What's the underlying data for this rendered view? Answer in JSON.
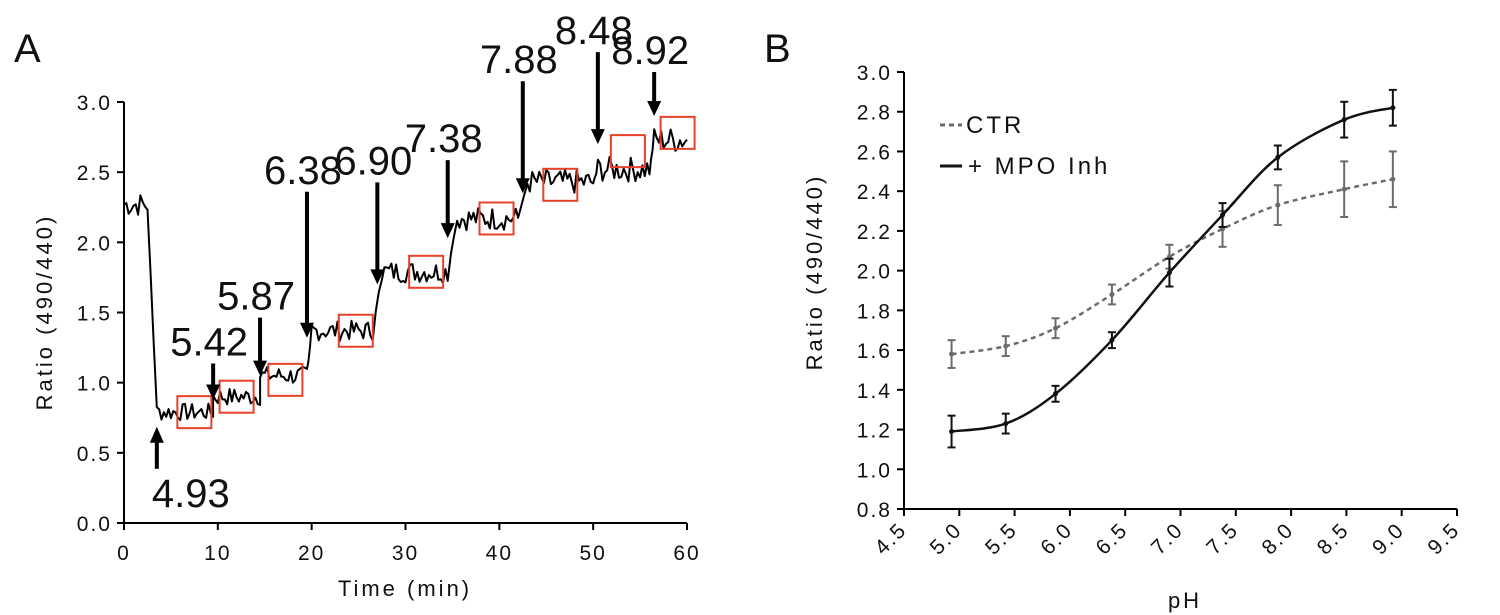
{
  "chart_data": [
    {
      "panel": "A",
      "type": "line",
      "xlabel": "Time (min)",
      "ylabel": "Ratio (490/440)",
      "xlim": [
        0,
        60
      ],
      "ylim": [
        0,
        3.0
      ],
      "xticks": [
        "0",
        "10",
        "20",
        "30",
        "40",
        "50",
        "60"
      ],
      "yticks": [
        "0.0",
        "0.5",
        "1.0",
        "1.5",
        "2.0",
        "2.5",
        "3.0"
      ],
      "grid": false,
      "line_color": "#000000",
      "box_color": "#e8412a",
      "plateaus": [
        {
          "t_start": 0,
          "t_end": 2.5,
          "level": 2.27
        },
        {
          "t_start": 3.5,
          "t_end": 9.5,
          "level": 0.79
        },
        {
          "t_start": 9.5,
          "t_end": 14.5,
          "level": 0.9
        },
        {
          "t_start": 14.5,
          "t_end": 19.5,
          "level": 1.05
        },
        {
          "t_start": 20,
          "t_end": 26.5,
          "level": 1.37
        },
        {
          "t_start": 27.5,
          "t_end": 34.5,
          "level": 1.79
        },
        {
          "t_start": 35.5,
          "t_end": 42,
          "level": 2.17
        },
        {
          "t_start": 43,
          "t_end": 50,
          "level": 2.43
        },
        {
          "t_start": 50.5,
          "t_end": 56,
          "level": 2.52
        },
        {
          "t_start": 56.5,
          "t_end": 60,
          "level": 2.73
        }
      ],
      "boxes": [
        {
          "t": 7.5,
          "level": 0.79
        },
        {
          "t": 12.0,
          "level": 0.9
        },
        {
          "t": 17.2,
          "level": 1.02
        },
        {
          "t": 24.7,
          "level": 1.37
        },
        {
          "t": 32.2,
          "level": 1.79
        },
        {
          "t": 39.7,
          "level": 2.17
        },
        {
          "t": 46.5,
          "level": 2.41
        },
        {
          "t": 53.7,
          "level": 2.65
        },
        {
          "t": 59.0,
          "level": 2.78
        }
      ],
      "annotations": [
        {
          "text": "4.93",
          "t": 3.5,
          "level": 0.6,
          "direction": "up"
        },
        {
          "text": "5.42",
          "t": 9.5,
          "level": 0.88,
          "direction": "down"
        },
        {
          "text": "5.87",
          "t": 14.5,
          "level": 1.05,
          "direction": "down"
        },
        {
          "text": "6.38",
          "t": 19.5,
          "level": 1.32,
          "direction": "down"
        },
        {
          "text": "6.90",
          "t": 27.0,
          "level": 1.7,
          "direction": "down"
        },
        {
          "text": "7.38",
          "t": 34.5,
          "level": 2.03,
          "direction": "down"
        },
        {
          "text": "7.88",
          "t": 42.5,
          "level": 2.35,
          "direction": "down"
        },
        {
          "text": "8.48",
          "t": 50.5,
          "level": 2.7,
          "direction": "down"
        },
        {
          "text": "8.92",
          "t": 56.5,
          "level": 2.9,
          "direction": "down"
        }
      ]
    },
    {
      "panel": "B",
      "type": "line",
      "xlabel": "pH",
      "ylabel": "Ratio (490/440)",
      "xlim": [
        4.5,
        9.5
      ],
      "ylim": [
        0.8,
        3.0
      ],
      "xticks": [
        "4.5",
        "5.0",
        "5.5",
        "6.0",
        "6.5",
        "7.0",
        "7.5",
        "8.0",
        "8.5",
        "9.0",
        "9.5"
      ],
      "yticks": [
        "0.8",
        "1.0",
        "1.2",
        "1.4",
        "1.6",
        "1.8",
        "2.0",
        "2.2",
        "2.4",
        "2.6",
        "2.8",
        "3.0"
      ],
      "grid": false,
      "legend_position": "top-left",
      "series": [
        {
          "name": "CTR",
          "color": "#6b6b6b",
          "dash": "dashed",
          "x": [
            4.93,
            5.42,
            5.87,
            6.38,
            6.9,
            7.38,
            7.88,
            8.48,
            8.92
          ],
          "y": [
            1.58,
            1.62,
            1.71,
            1.88,
            2.07,
            2.21,
            2.33,
            2.41,
            2.46
          ],
          "err": [
            0.07,
            0.05,
            0.05,
            0.05,
            0.06,
            0.09,
            0.1,
            0.14,
            0.14
          ]
        },
        {
          "name": "+ MPO Inh",
          "color": "#111111",
          "dash": "solid",
          "x": [
            4.93,
            5.42,
            5.87,
            6.38,
            6.9,
            7.38,
            7.88,
            8.48,
            8.92
          ],
          "y": [
            1.19,
            1.23,
            1.38,
            1.65,
            1.99,
            2.28,
            2.57,
            2.76,
            2.82
          ],
          "err": [
            0.08,
            0.05,
            0.04,
            0.04,
            0.07,
            0.06,
            0.06,
            0.09,
            0.09
          ]
        }
      ]
    }
  ]
}
